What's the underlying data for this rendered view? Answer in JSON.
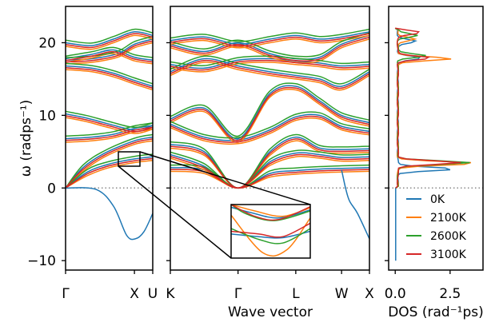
{
  "chart_data": {
    "type": "line",
    "ylabel": "ω (radps⁻¹)",
    "ylim": [
      -11.3,
      25
    ],
    "y_ticks": [
      -10,
      0,
      10,
      20
    ],
    "y_tick_labels": [
      "−10",
      "0",
      "10",
      "20"
    ],
    "grid": false,
    "legend_position": "lower-right",
    "series": [
      {
        "name": "0K",
        "color": "#1f77b4"
      },
      {
        "name": "2100K",
        "color": "#ff7f0e"
      },
      {
        "name": "2600K",
        "color": "#2ca02c"
      },
      {
        "name": "3100K",
        "color": "#d62728"
      }
    ],
    "zero_line": {
      "y": 0,
      "style": "dotted",
      "color": "#888888"
    },
    "panels": [
      {
        "id": "left",
        "x_tick_labels": [
          "Γ",
          "X",
          "U"
        ],
        "x_ticks": [
          0,
          0.79,
          1.0
        ]
      },
      {
        "id": "middle",
        "xlabel": "Wave vector",
        "x_tick_labels": [
          "K",
          "Γ",
          "L",
          "W",
          "X"
        ],
        "x_ticks": [
          0,
          0.34,
          0.63,
          0.86,
          1.0
        ]
      },
      {
        "id": "dos",
        "xlabel": "DOS (rad⁻¹ps)",
        "x_tick_labels": [
          "0.0",
          "2.5"
        ],
        "x_ticks": [
          0,
          2.5
        ],
        "xlim": [
          -0.3,
          4.0
        ]
      }
    ],
    "dos_peaks": [
      {
        "series": "0K",
        "peaks": [
          [
            2.6,
            2.6
          ],
          [
            1.1,
            17.9
          ],
          [
            0.8,
            20.2
          ]
        ]
      },
      {
        "series": "2100K",
        "peaks": [
          [
            3.6,
            3.4
          ],
          [
            2.5,
            17.8
          ],
          [
            0.8,
            20.5
          ]
        ]
      },
      {
        "series": "2600K",
        "peaks": [
          [
            3.3,
            3.5
          ],
          [
            1.3,
            18.2
          ],
          [
            0.9,
            21.0
          ]
        ]
      },
      {
        "series": "3100K",
        "peaks": [
          [
            2.9,
            3.5
          ],
          [
            1.5,
            17.9
          ],
          [
            1.0,
            21.4
          ]
        ]
      }
    ]
  }
}
